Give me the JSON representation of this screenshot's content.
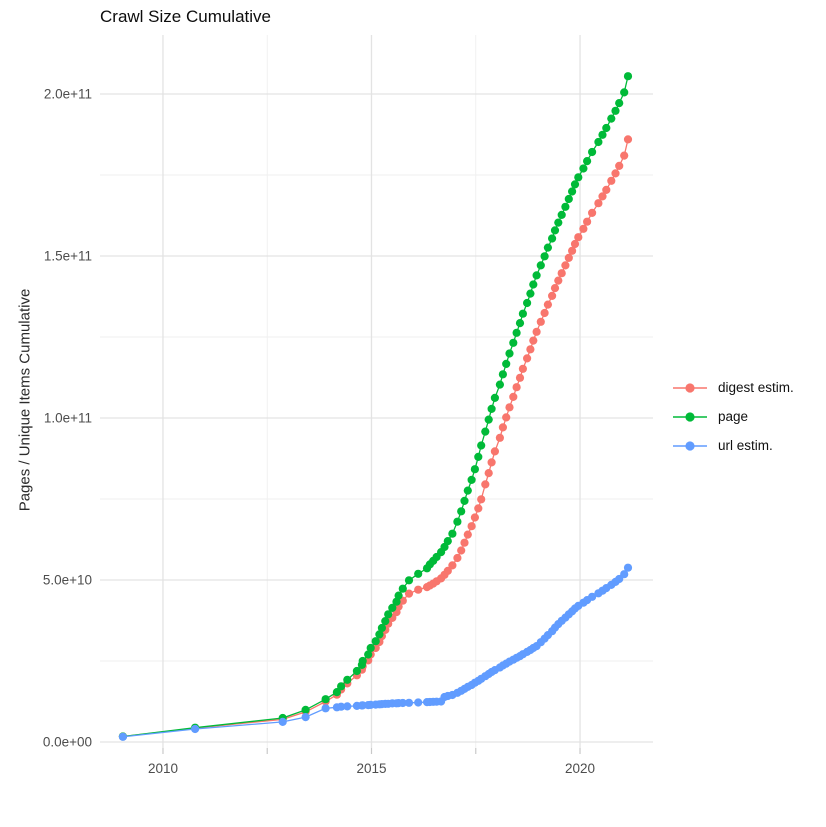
{
  "title": "Crawl Size Cumulative",
  "legend": {
    "items": [
      {
        "label": "digest estim.",
        "color": "#F8766D"
      },
      {
        "label": "page",
        "color": "#00BA38"
      },
      {
        "label": "url estim.",
        "color": "#619CFF"
      }
    ]
  },
  "style": {
    "grid_major_color": "#E3E3E3",
    "grid_minor_color": "#EFEFEF",
    "tick_mark_color": "#C9C9C9",
    "background": "#FFFFFF"
  },
  "chart_data": {
    "type": "scatter",
    "title": "Crawl Size Cumulative",
    "xlabel": "",
    "ylabel": "Pages / Unique Items Cumulative",
    "x_unit": "year (decimal)",
    "value_unit_multiplier": 1000000000.0,
    "xlim": [
      2008.49,
      2021.75
    ],
    "ylim": [
      0,
      218000000000.0
    ],
    "grid": true,
    "legend_position": "right",
    "x_ticks": {
      "values": [
        2010,
        2015,
        2020
      ],
      "labels": [
        "2010",
        "2015",
        "2020"
      ],
      "minor": [
        2012.5,
        2017.5
      ]
    },
    "y_ticks": {
      "values_e9": [
        0,
        50,
        100,
        150,
        200
      ],
      "labels": [
        "0.0e+00",
        "5.0e+10",
        "1.0e+11",
        "1.5e+11",
        "2.0e+11"
      ],
      "minor_e9": [
        25,
        75,
        125,
        175
      ]
    },
    "series": [
      {
        "name": "digest estim.",
        "color": "#F8766D",
        "points_year_value_e9": [
          [
            2009.04,
            1.7
          ],
          [
            2010.77,
            4.3
          ],
          [
            2012.87,
            7.0
          ],
          [
            2013.42,
            9.3
          ],
          [
            2013.9,
            12.5
          ],
          [
            2014.17,
            14.6
          ],
          [
            2014.27,
            16.2
          ],
          [
            2014.42,
            18.1
          ],
          [
            2014.65,
            20.6
          ],
          [
            2014.77,
            22.3
          ],
          [
            2014.79,
            23.4
          ],
          [
            2014.92,
            25.2
          ],
          [
            2014.98,
            27.0
          ],
          [
            2015.1,
            29.0
          ],
          [
            2015.19,
            30.9
          ],
          [
            2015.25,
            32.7
          ],
          [
            2015.33,
            34.6
          ],
          [
            2015.4,
            36.5
          ],
          [
            2015.5,
            38.3
          ],
          [
            2015.6,
            40.1
          ],
          [
            2015.65,
            41.8
          ],
          [
            2015.75,
            43.6
          ],
          [
            2015.9,
            45.8
          ],
          [
            2016.12,
            47.0
          ],
          [
            2016.33,
            47.8
          ],
          [
            2016.4,
            48.3
          ],
          [
            2016.48,
            48.9
          ],
          [
            2016.56,
            49.6
          ],
          [
            2016.67,
            50.5
          ],
          [
            2016.75,
            51.6
          ],
          [
            2016.83,
            52.8
          ],
          [
            2016.94,
            54.5
          ],
          [
            2017.06,
            56.8
          ],
          [
            2017.15,
            59.1
          ],
          [
            2017.23,
            61.5
          ],
          [
            2017.31,
            64.0
          ],
          [
            2017.4,
            66.6
          ],
          [
            2017.48,
            69.3
          ],
          [
            2017.56,
            72.1
          ],
          [
            2017.63,
            74.9
          ],
          [
            2017.73,
            79.5
          ],
          [
            2017.81,
            83.0
          ],
          [
            2017.88,
            86.3
          ],
          [
            2017.96,
            89.7
          ],
          [
            2018.08,
            93.9
          ],
          [
            2018.15,
            97.1
          ],
          [
            2018.23,
            100.2
          ],
          [
            2018.31,
            103.3
          ],
          [
            2018.4,
            106.5
          ],
          [
            2018.48,
            109.5
          ],
          [
            2018.56,
            112.4
          ],
          [
            2018.63,
            115.2
          ],
          [
            2018.73,
            118.4
          ],
          [
            2018.81,
            121.2
          ],
          [
            2018.88,
            123.9
          ],
          [
            2018.96,
            126.6
          ],
          [
            2019.06,
            129.7
          ],
          [
            2019.15,
            132.4
          ],
          [
            2019.23,
            135.0
          ],
          [
            2019.33,
            137.7
          ],
          [
            2019.4,
            140.1
          ],
          [
            2019.48,
            142.4
          ],
          [
            2019.56,
            144.7
          ],
          [
            2019.65,
            147.1
          ],
          [
            2019.73,
            149.4
          ],
          [
            2019.81,
            151.6
          ],
          [
            2019.88,
            153.7
          ],
          [
            2019.96,
            155.8
          ],
          [
            2020.08,
            158.4
          ],
          [
            2020.17,
            160.6
          ],
          [
            2020.29,
            163.3
          ],
          [
            2020.44,
            166.3
          ],
          [
            2020.54,
            168.4
          ],
          [
            2020.63,
            170.4
          ],
          [
            2020.75,
            173.2
          ],
          [
            2020.85,
            175.5
          ],
          [
            2020.94,
            177.8
          ],
          [
            2021.06,
            181.0
          ],
          [
            2021.15,
            186.0
          ]
        ]
      },
      {
        "name": "page",
        "color": "#00BA38",
        "points_year_value_e9": [
          [
            2009.04,
            1.7
          ],
          [
            2010.77,
            4.4
          ],
          [
            2012.87,
            7.4
          ],
          [
            2013.42,
            9.9
          ],
          [
            2013.9,
            13.2
          ],
          [
            2014.17,
            15.4
          ],
          [
            2014.27,
            17.2
          ],
          [
            2014.42,
            19.2
          ],
          [
            2014.65,
            21.9
          ],
          [
            2014.77,
            23.8
          ],
          [
            2014.79,
            25.0
          ],
          [
            2014.92,
            27.0
          ],
          [
            2014.98,
            29.0
          ],
          [
            2015.1,
            31.1
          ],
          [
            2015.19,
            33.2
          ],
          [
            2015.25,
            35.2
          ],
          [
            2015.33,
            37.3
          ],
          [
            2015.4,
            39.4
          ],
          [
            2015.5,
            41.4
          ],
          [
            2015.6,
            43.3
          ],
          [
            2015.65,
            45.2
          ],
          [
            2015.75,
            47.3
          ],
          [
            2015.9,
            49.9
          ],
          [
            2016.12,
            51.9
          ],
          [
            2016.33,
            53.6
          ],
          [
            2016.4,
            54.8
          ],
          [
            2016.48,
            55.9
          ],
          [
            2016.56,
            57.1
          ],
          [
            2016.67,
            58.6
          ],
          [
            2016.75,
            60.2
          ],
          [
            2016.83,
            62.0
          ],
          [
            2016.94,
            64.3
          ],
          [
            2017.06,
            68.0
          ],
          [
            2017.15,
            71.2
          ],
          [
            2017.23,
            74.4
          ],
          [
            2017.31,
            77.6
          ],
          [
            2017.4,
            80.9
          ],
          [
            2017.48,
            84.2
          ],
          [
            2017.56,
            88.0
          ],
          [
            2017.63,
            91.5
          ],
          [
            2017.73,
            95.8
          ],
          [
            2017.81,
            99.5
          ],
          [
            2017.88,
            102.8
          ],
          [
            2017.96,
            106.2
          ],
          [
            2018.08,
            110.3
          ],
          [
            2018.15,
            113.5
          ],
          [
            2018.23,
            116.7
          ],
          [
            2018.31,
            119.9
          ],
          [
            2018.4,
            123.2
          ],
          [
            2018.48,
            126.3
          ],
          [
            2018.56,
            129.3
          ],
          [
            2018.63,
            132.2
          ],
          [
            2018.73,
            135.5
          ],
          [
            2018.81,
            138.4
          ],
          [
            2018.88,
            141.2
          ],
          [
            2018.96,
            144.0
          ],
          [
            2019.06,
            147.1
          ],
          [
            2019.15,
            149.9
          ],
          [
            2019.23,
            152.6
          ],
          [
            2019.33,
            155.4
          ],
          [
            2019.4,
            157.9
          ],
          [
            2019.48,
            160.3
          ],
          [
            2019.56,
            162.7
          ],
          [
            2019.65,
            165.2
          ],
          [
            2019.73,
            167.6
          ],
          [
            2019.81,
            169.9
          ],
          [
            2019.88,
            172.1
          ],
          [
            2019.96,
            174.3
          ],
          [
            2020.08,
            177.0
          ],
          [
            2020.17,
            179.3
          ],
          [
            2020.29,
            182.1
          ],
          [
            2020.44,
            185.2
          ],
          [
            2020.54,
            187.4
          ],
          [
            2020.63,
            189.5
          ],
          [
            2020.75,
            192.4
          ],
          [
            2020.85,
            194.8
          ],
          [
            2020.94,
            197.2
          ],
          [
            2021.06,
            200.5
          ],
          [
            2021.15,
            205.5
          ]
        ]
      },
      {
        "name": "url estim.",
        "color": "#619CFF",
        "points_year_value_e9": [
          [
            2009.04,
            1.6
          ],
          [
            2010.77,
            4.0
          ],
          [
            2012.87,
            6.2
          ],
          [
            2013.42,
            7.7
          ],
          [
            2013.9,
            10.4
          ],
          [
            2014.17,
            10.7
          ],
          [
            2014.27,
            10.9
          ],
          [
            2014.42,
            11.0
          ],
          [
            2014.65,
            11.15
          ],
          [
            2014.77,
            11.25
          ],
          [
            2014.79,
            11.3
          ],
          [
            2014.92,
            11.4
          ],
          [
            2014.98,
            11.45
          ],
          [
            2015.1,
            11.55
          ],
          [
            2015.19,
            11.65
          ],
          [
            2015.25,
            11.7
          ],
          [
            2015.33,
            11.75
          ],
          [
            2015.4,
            11.8
          ],
          [
            2015.5,
            11.9
          ],
          [
            2015.6,
            11.95
          ],
          [
            2015.65,
            12.0
          ],
          [
            2015.75,
            12.05
          ],
          [
            2015.9,
            12.1
          ],
          [
            2016.12,
            12.2
          ],
          [
            2016.33,
            12.3
          ],
          [
            2016.4,
            12.35
          ],
          [
            2016.48,
            12.4
          ],
          [
            2016.56,
            12.45
          ],
          [
            2016.67,
            12.5
          ],
          [
            2016.75,
            13.9
          ],
          [
            2016.83,
            14.2
          ],
          [
            2016.94,
            14.5
          ],
          [
            2017.06,
            15.2
          ],
          [
            2017.15,
            15.8
          ],
          [
            2017.23,
            16.4
          ],
          [
            2017.31,
            17.0
          ],
          [
            2017.4,
            17.6
          ],
          [
            2017.48,
            18.3
          ],
          [
            2017.56,
            18.9
          ],
          [
            2017.63,
            19.5
          ],
          [
            2017.73,
            20.3
          ],
          [
            2017.81,
            21.0
          ],
          [
            2017.88,
            21.6
          ],
          [
            2017.96,
            22.2
          ],
          [
            2018.08,
            23.0
          ],
          [
            2018.15,
            23.6
          ],
          [
            2018.23,
            24.2
          ],
          [
            2018.31,
            24.8
          ],
          [
            2018.4,
            25.4
          ],
          [
            2018.48,
            26.0
          ],
          [
            2018.56,
            26.5
          ],
          [
            2018.63,
            27.1
          ],
          [
            2018.73,
            27.8
          ],
          [
            2018.81,
            28.4
          ],
          [
            2018.88,
            29.0
          ],
          [
            2018.96,
            29.6
          ],
          [
            2019.06,
            30.8
          ],
          [
            2019.15,
            31.9
          ],
          [
            2019.23,
            33.0
          ],
          [
            2019.33,
            34.2
          ],
          [
            2019.4,
            35.3
          ],
          [
            2019.48,
            36.4
          ],
          [
            2019.56,
            37.4
          ],
          [
            2019.65,
            38.4
          ],
          [
            2019.73,
            39.4
          ],
          [
            2019.81,
            40.3
          ],
          [
            2019.88,
            41.2
          ],
          [
            2019.96,
            42.0
          ],
          [
            2020.08,
            43.0
          ],
          [
            2020.17,
            43.8
          ],
          [
            2020.29,
            44.8
          ],
          [
            2020.44,
            45.9
          ],
          [
            2020.54,
            46.7
          ],
          [
            2020.63,
            47.5
          ],
          [
            2020.75,
            48.5
          ],
          [
            2020.85,
            49.4
          ],
          [
            2020.94,
            50.3
          ],
          [
            2021.06,
            51.8
          ],
          [
            2021.15,
            53.8
          ]
        ]
      }
    ]
  }
}
